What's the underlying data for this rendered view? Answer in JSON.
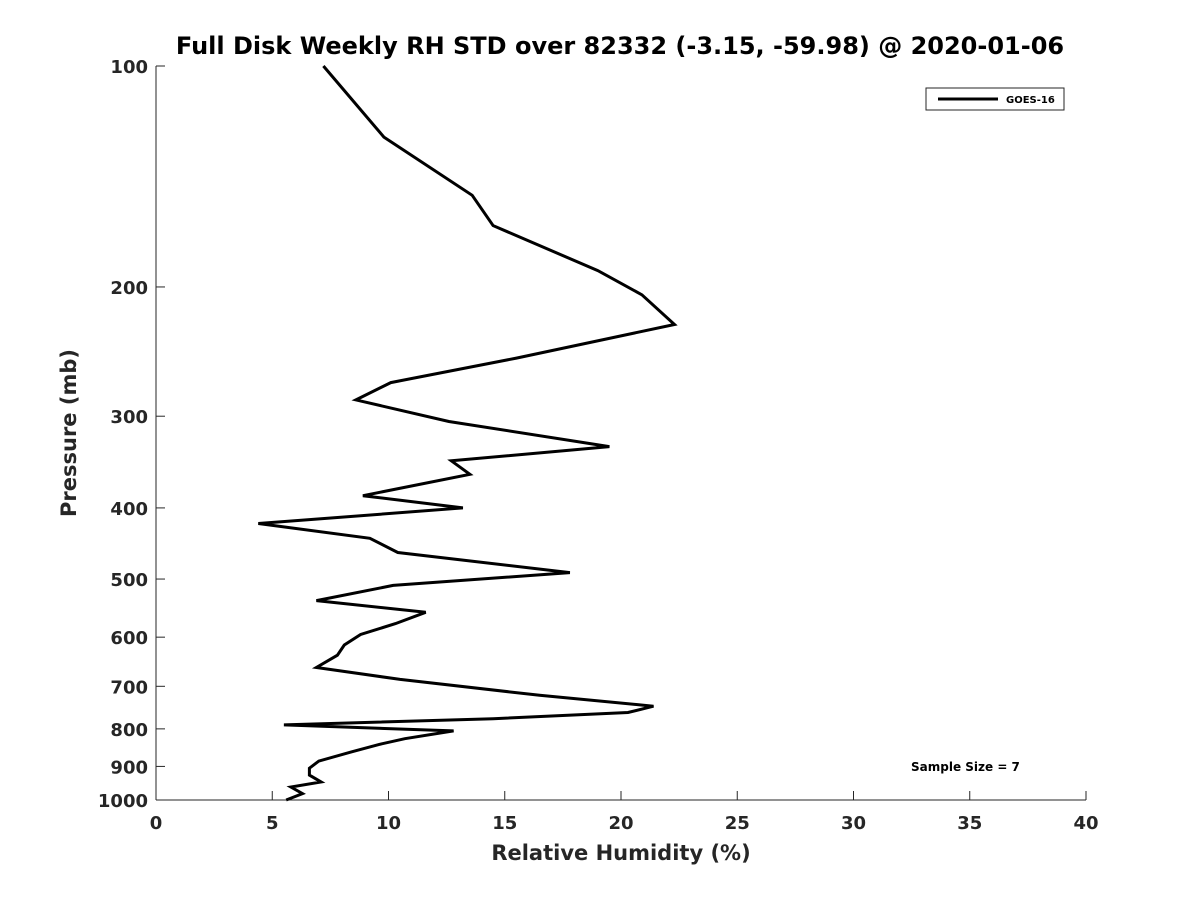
{
  "chart_data": {
    "type": "line",
    "title": "Full Disk Weekly RH STD over 82332 (-3.15, -59.98) @ 2020-01-06",
    "xlabel": "Relative Humidity (%)",
    "ylabel": "Pressure (mb)",
    "xlim": [
      0,
      40
    ],
    "ylim": [
      100,
      1000
    ],
    "yscale": "log",
    "yreversed": true,
    "xticks": [
      0,
      5,
      10,
      15,
      20,
      25,
      30,
      35,
      40
    ],
    "xtick_labels": [
      "0",
      "5",
      "10",
      "15",
      "20",
      "25",
      "30",
      "35",
      "40"
    ],
    "yticks": [
      100,
      200,
      300,
      400,
      500,
      600,
      700,
      800,
      900,
      1000
    ],
    "ytick_labels": [
      "100",
      "200",
      "300",
      "400",
      "500",
      "600",
      "700",
      "800",
      "900",
      "1000"
    ],
    "grid": false,
    "legend": {
      "position": "top-right",
      "entries": [
        "GOES-16"
      ]
    },
    "annotation": "Sample Size = 7",
    "series": [
      {
        "name": "GOES-16",
        "color": "#000000",
        "x": [
          7.2,
          9.8,
          13.6,
          14.5,
          19.0,
          20.9,
          22.3,
          15.5,
          10.1,
          8.6,
          12.6,
          19.5,
          12.7,
          13.5,
          8.9,
          13.2,
          4.4,
          9.2,
          10.4,
          17.8,
          10.2,
          6.9,
          11.6,
          10.3,
          8.8,
          8.1,
          7.8,
          6.9,
          10.5,
          16.5,
          21.4,
          20.3,
          14.5,
          5.5,
          12.8,
          10.7,
          9.6,
          8.4,
          7.0,
          6.6,
          6.6,
          7.1,
          5.8,
          6.3,
          5.6
        ],
        "y": [
          100,
          125,
          150,
          165,
          190,
          205,
          225,
          250,
          270,
          285,
          305,
          330,
          345,
          360,
          385,
          400,
          420,
          440,
          460,
          490,
          510,
          535,
          555,
          575,
          595,
          615,
          635,
          660,
          685,
          720,
          745,
          760,
          775,
          790,
          805,
          825,
          840,
          860,
          885,
          905,
          925,
          945,
          960,
          980,
          1000
        ]
      }
    ]
  }
}
